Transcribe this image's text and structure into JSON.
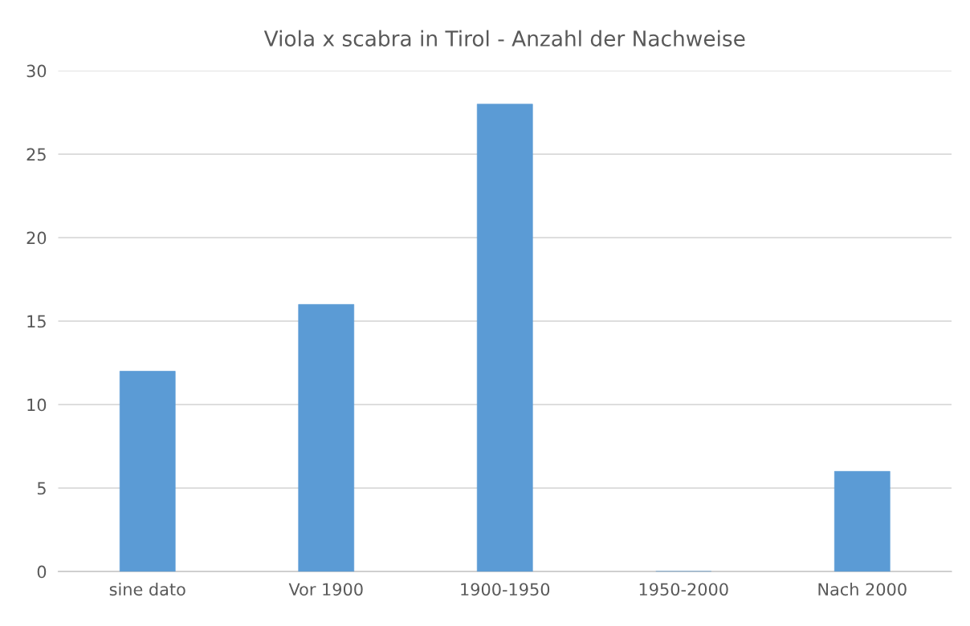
{
  "chart_data": {
    "type": "bar",
    "title": "Viola x scabra in Tirol - Anzahl der Nachweise",
    "categories": [
      "sine dato",
      "Vor 1900",
      "1900-1950",
      "1950-2000",
      "Nach 2000"
    ],
    "values": [
      12,
      16,
      28,
      0,
      6
    ],
    "color": "#5b9bd5",
    "ylim": [
      0,
      30
    ],
    "yticks": [
      0,
      5,
      10,
      15,
      20,
      25,
      30
    ],
    "grid": "y"
  }
}
